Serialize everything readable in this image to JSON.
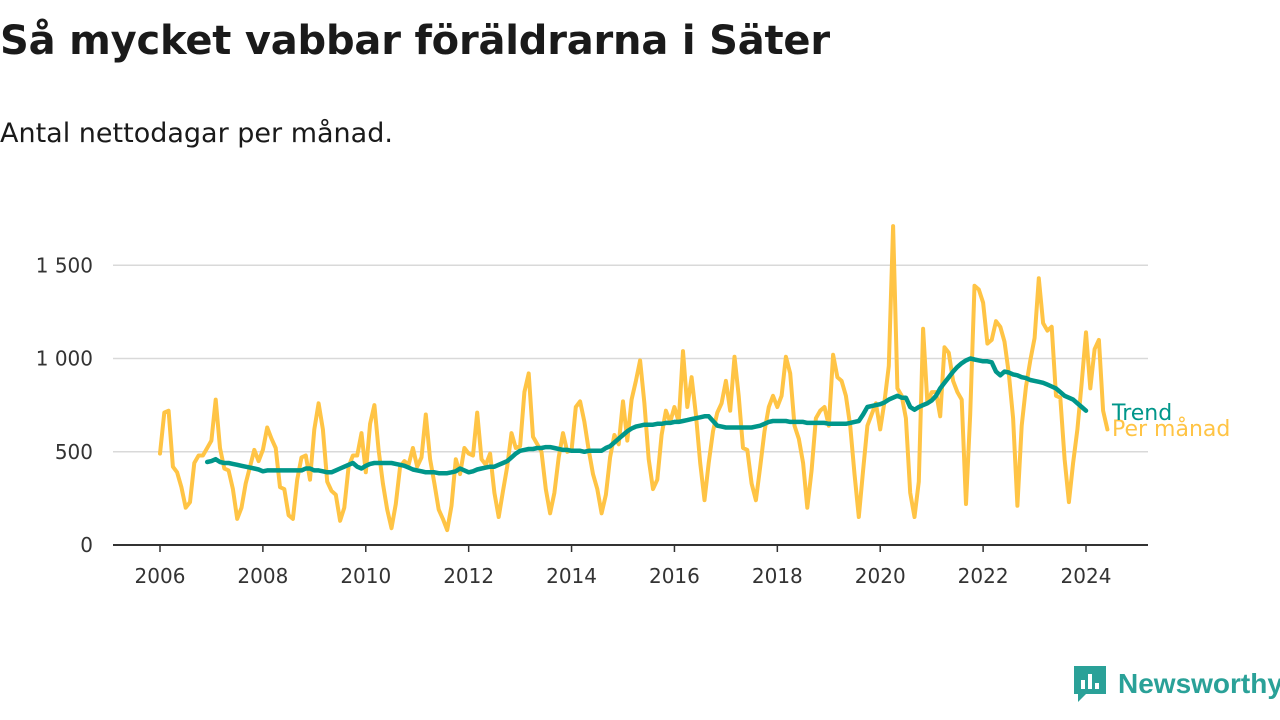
{
  "title": "Så mycket vabbar föräldrarna i Säter",
  "subtitle": "Antal nettodagar per månad.",
  "brand": {
    "name": "Newsworthy",
    "icon": "newsworthy-logo-icon",
    "color": "#2aa198"
  },
  "chart_data": {
    "type": "line",
    "ylim": [
      0,
      1700
    ],
    "xlim": [
      2006,
      2025
    ],
    "yticks": [
      0,
      500,
      1000,
      1500
    ],
    "ytick_labels": [
      "0",
      "500",
      "1 000",
      "1 500"
    ],
    "xticks": [
      2006,
      2008,
      2010,
      2012,
      2014,
      2016,
      2018,
      2020,
      2022,
      2024
    ],
    "xtick_labels": [
      "2006",
      "2008",
      "2010",
      "2012",
      "2014",
      "2016",
      "2018",
      "2020",
      "2022",
      "2024"
    ],
    "grid": true,
    "legend": "inline-end-labels",
    "series": [
      {
        "name": "Per månad",
        "color": "#FFC445",
        "x_start": 2006.0,
        "x_step": 0.0833333,
        "values": [
          490,
          710,
          720,
          420,
          390,
          310,
          200,
          230,
          440,
          480,
          480,
          520,
          560,
          780,
          520,
          410,
          400,
          300,
          140,
          200,
          330,
          420,
          510,
          450,
          510,
          630,
          570,
          520,
          310,
          300,
          160,
          140,
          350,
          470,
          480,
          350,
          620,
          760,
          620,
          340,
          290,
          270,
          130,
          200,
          420,
          480,
          480,
          600,
          390,
          650,
          750,
          510,
          330,
          190,
          90,
          220,
          420,
          450,
          430,
          520,
          420,
          470,
          700,
          460,
          330,
          190,
          140,
          80,
          210,
          460,
          380,
          520,
          490,
          480,
          710,
          460,
          430,
          490,
          280,
          150,
          290,
          420,
          600,
          520,
          530,
          820,
          920,
          580,
          540,
          500,
          300,
          170,
          280,
          470,
          600,
          500,
          510,
          740,
          770,
          660,
          510,
          380,
          300,
          170,
          270,
          470,
          590,
          540,
          770,
          560,
          780,
          880,
          990,
          760,
          460,
          300,
          350,
          590,
          720,
          660,
          740,
          660,
          1040,
          740,
          900,
          700,
          440,
          240,
          440,
          610,
          710,
          760,
          880,
          720,
          1010,
          800,
          520,
          510,
          330,
          240,
          420,
          610,
          740,
          800,
          740,
          800,
          1010,
          920,
          640,
          570,
          440,
          200,
          400,
          680,
          720,
          740,
          640,
          1020,
          900,
          880,
          800,
          640,
          380,
          150,
          400,
          640,
          700,
          760,
          620,
          770,
          960,
          1710,
          840,
          800,
          680,
          280,
          150,
          340,
          1160,
          760,
          820,
          820,
          690,
          1060,
          1030,
          880,
          820,
          780,
          220,
          700,
          1390,
          1370,
          1300,
          1080,
          1100,
          1200,
          1170,
          1090,
          920,
          680,
          210,
          640,
          850,
          990,
          1110,
          1430,
          1190,
          1150,
          1170,
          800,
          790,
          460,
          230,
          440,
          620,
          870,
          1140,
          840,
          1050,
          1100,
          720,
          620
        ]
      },
      {
        "name": "Trend",
        "color": "#00968A",
        "x_start": 2006.9167,
        "x_step": 0.0833333,
        "values": [
          445,
          450,
          460,
          445,
          440,
          440,
          435,
          430,
          425,
          420,
          415,
          410,
          405,
          395,
          400,
          400,
          400,
          400,
          400,
          400,
          400,
          400,
          400,
          410,
          410,
          400,
          400,
          395,
          390,
          390,
          400,
          410,
          420,
          430,
          440,
          420,
          410,
          425,
          435,
          440,
          440,
          440,
          440,
          440,
          435,
          430,
          425,
          415,
          405,
          400,
          395,
          390,
          390,
          390,
          385,
          385,
          385,
          390,
          395,
          410,
          400,
          390,
          395,
          405,
          410,
          415,
          420,
          420,
          430,
          440,
          450,
          470,
          490,
          505,
          510,
          515,
          515,
          520,
          520,
          525,
          525,
          520,
          515,
          510,
          510,
          505,
          505,
          505,
          500,
          505,
          505,
          505,
          505,
          520,
          530,
          550,
          570,
          590,
          610,
          625,
          635,
          640,
          645,
          645,
          645,
          650,
          650,
          655,
          655,
          660,
          660,
          665,
          670,
          675,
          680,
          685,
          690,
          690,
          665,
          640,
          635,
          630,
          630,
          630,
          630,
          630,
          630,
          630,
          635,
          640,
          650,
          660,
          665,
          665,
          665,
          665,
          660,
          660,
          660,
          660,
          655,
          655,
          655,
          655,
          655,
          650,
          650,
          650,
          650,
          650,
          655,
          660,
          665,
          700,
          740,
          745,
          750,
          755,
          765,
          780,
          790,
          800,
          790,
          790,
          740,
          725,
          740,
          750,
          760,
          775,
          800,
          840,
          870,
          900,
          930,
          955,
          975,
          990,
          1000,
          995,
          990,
          985,
          985,
          980,
          930,
          910,
          930,
          925,
          915,
          910,
          900,
          895,
          885,
          880,
          875,
          870,
          860,
          850,
          840,
          820,
          800,
          790,
          780,
          760,
          740,
          720
        ]
      }
    ]
  }
}
